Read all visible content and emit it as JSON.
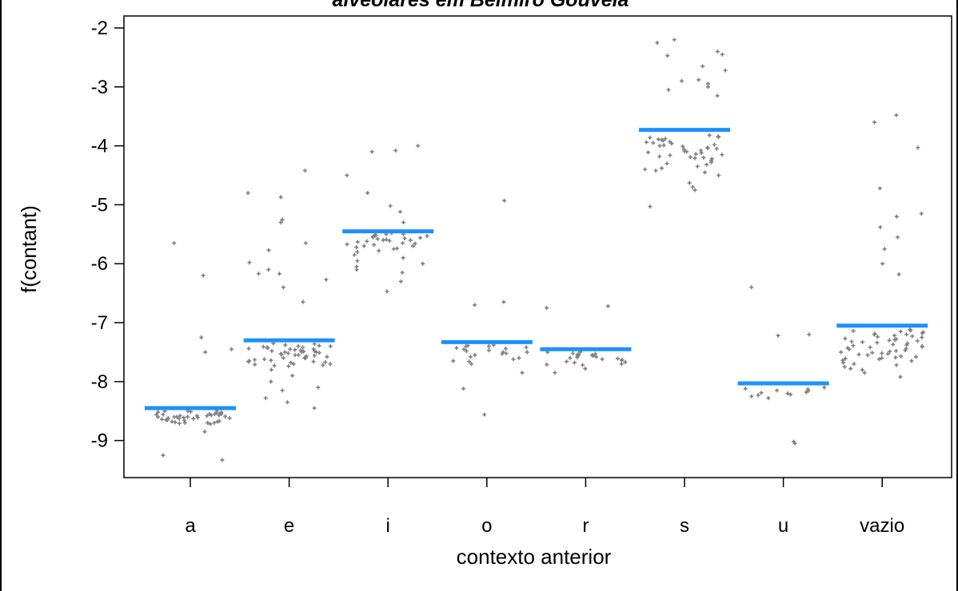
{
  "chart_data": {
    "type": "scatter",
    "title": "alveolares em Belmiro Gouveia",
    "xlabel": "contexto anterior",
    "ylabel": "f(contant)",
    "categories": [
      "a",
      "e",
      "i",
      "o",
      "r",
      "s",
      "u",
      "vazio"
    ],
    "yticks": [
      -2,
      -3,
      -4,
      -5,
      -6,
      -7,
      -8,
      -9
    ],
    "ylim": [
      -9.7,
      -1.9
    ],
    "grid": false,
    "colors": {
      "points": "#808080",
      "means": "#1E90FF"
    },
    "group_means": [
      {
        "category": "a",
        "value": -8.45
      },
      {
        "category": "e",
        "value": -7.3
      },
      {
        "category": "i",
        "value": -5.45
      },
      {
        "category": "o",
        "value": -7.33
      },
      {
        "category": "r",
        "value": -7.45
      },
      {
        "category": "s",
        "value": -3.73
      },
      {
        "category": "u",
        "value": -8.03
      },
      {
        "category": "vazio",
        "value": -7.05
      }
    ],
    "points": {
      "a": [
        -6.2,
        -5.65,
        -7.25,
        -7.45,
        -7.5,
        -8.85,
        -9.25,
        -9.33,
        -8.7,
        -8.68,
        -8.72,
        -8.6,
        -8.55,
        -8.5,
        -8.58,
        -8.62,
        -8.65,
        -8.7,
        -8.52,
        -8.57,
        -8.6,
        -8.5,
        -8.55,
        -8.63,
        -8.68,
        -8.71,
        -8.59,
        -8.54,
        -8.61,
        -8.66,
        -8.53,
        -8.56,
        -8.64,
        -8.69,
        -8.58,
        -8.51,
        -8.62,
        -8.6,
        -8.57,
        -8.65,
        -8.7,
        -8.55,
        -8.5,
        -8.6,
        -8.63,
        -8.67,
        -8.58,
        -8.52,
        -8.61,
        -8.56
      ],
      "e": [
        -4.42,
        -4.87,
        -5.65,
        -5.77,
        -6.17,
        -5.3,
        -5.25,
        -6.27,
        -6.4,
        -5.98,
        -6.1,
        -6.17,
        -6.65,
        -4.8,
        -7.8,
        -8.0,
        -8.15,
        -8.28,
        -8.45,
        -8.35,
        -7.9,
        -8.1,
        -7.55,
        -7.6,
        -7.65,
        -7.7,
        -7.5,
        -7.45,
        -7.42,
        -7.48,
        -7.52,
        -7.58,
        -7.62,
        -7.68,
        -7.72,
        -7.4,
        -7.44,
        -7.47,
        -7.5,
        -7.53,
        -7.56,
        -7.6,
        -7.64,
        -7.66,
        -7.7,
        -7.74,
        -7.41,
        -7.46,
        -7.49,
        -7.51,
        -7.55,
        -7.59,
        -7.63,
        -7.67,
        -7.71,
        -7.43,
        -7.38,
        -7.36,
        -7.35,
        -7.39,
        -7.42,
        -7.48,
        -7.54,
        -7.6,
        -7.66,
        -7.73,
        -7.57,
        -7.5,
        -7.45,
        -7.4
      ],
      "i": [
        -4.08,
        -4.0,
        -4.1,
        -4.5,
        -4.8,
        -5.02,
        -5.12,
        -5.3,
        -6.15,
        -6.47,
        -6.3,
        -6.0,
        -5.9,
        -5.8,
        -5.75,
        -5.7,
        -5.65,
        -5.6,
        -5.55,
        -5.5,
        -5.52,
        -5.58,
        -5.62,
        -5.68,
        -5.72,
        -5.48,
        -5.53,
        -5.57,
        -5.61,
        -5.66,
        -5.7,
        -5.54,
        -5.5,
        -5.59,
        -5.63,
        -5.56,
        -5.51,
        -5.67,
        -5.74,
        -5.78,
        -5.85,
        -5.95,
        -6.05,
        -6.1,
        -5.6
      ],
      "o": [
        -4.93,
        -6.65,
        -6.7,
        -8.12,
        -8.56,
        -7.85,
        -7.7,
        -7.65,
        -7.6,
        -7.55,
        -7.5,
        -7.45,
        -7.4,
        -7.38,
        -7.42,
        -7.48,
        -7.52,
        -7.58,
        -7.62,
        -7.66,
        -7.4,
        -7.44,
        -7.47,
        -7.5,
        -7.53,
        -7.39,
        -7.43
      ],
      "r": [
        -6.72,
        -6.75,
        -7.85,
        -7.78,
        -7.72,
        -7.68,
        -7.62,
        -7.58,
        -7.55,
        -7.52,
        -7.5,
        -7.48,
        -7.56,
        -7.6,
        -7.64,
        -7.7,
        -7.53,
        -7.57,
        -7.61,
        -7.66,
        -7.5,
        -7.54,
        -7.59,
        -7.63,
        -7.67,
        -7.71,
        -7.55
      ],
      "s": [
        -2.2,
        -2.25,
        -2.4,
        -2.47,
        -2.45,
        -2.65,
        -2.72,
        -2.95,
        -2.9,
        -2.88,
        -3.15,
        -3.05,
        -3.0,
        -4.7,
        -4.75,
        -4.63,
        -5.03,
        -4.5,
        -4.45,
        -4.4,
        -4.35,
        -4.3,
        -4.25,
        -4.2,
        -4.15,
        -4.1,
        -4.05,
        -4.0,
        -3.95,
        -3.9,
        -3.85,
        -3.82,
        -3.88,
        -3.93,
        -3.98,
        -4.03,
        -4.08,
        -4.12,
        -4.18,
        -4.22,
        -4.28,
        -4.32,
        -4.38,
        -4.42,
        -3.86,
        -3.91,
        -3.96,
        -4.01,
        -4.06,
        -4.11,
        -4.16,
        -4.21,
        -3.84,
        -3.89,
        -3.94,
        -3.99,
        -4.04,
        -4.09,
        -4.14,
        -4.19
      ],
      "u": [
        -6.4,
        -7.2,
        -7.22,
        -9.05,
        -9.02,
        -8.28,
        -8.25,
        -8.22,
        -8.2,
        -8.18,
        -8.15,
        -8.12,
        -8.1,
        -8.13,
        -8.16,
        -8.19,
        -8.23
      ],
      "vazio": [
        -3.48,
        -4.03,
        -3.6,
        -4.72,
        -5.15,
        -5.2,
        -5.38,
        -5.55,
        -5.75,
        -6.0,
        -6.18,
        -7.92,
        -7.85,
        -7.8,
        -7.75,
        -7.7,
        -7.65,
        -7.6,
        -7.55,
        -7.5,
        -7.45,
        -7.4,
        -7.35,
        -7.3,
        -7.25,
        -7.2,
        -7.15,
        -7.12,
        -7.18,
        -7.22,
        -7.28,
        -7.32,
        -7.38,
        -7.42,
        -7.48,
        -7.52,
        -7.58,
        -7.62,
        -7.68,
        -7.72,
        -7.78,
        -7.14,
        -7.16,
        -7.2,
        -7.24,
        -7.27,
        -7.31,
        -7.34,
        -7.37,
        -7.41,
        -7.44,
        -7.47,
        -7.51,
        -7.54,
        -7.57,
        -7.61,
        -7.64,
        -7.13,
        -7.19,
        -7.23,
        -7.29,
        -7.33,
        -7.39,
        -7.43,
        -7.49,
        -7.53,
        -7.59
      ]
    }
  }
}
